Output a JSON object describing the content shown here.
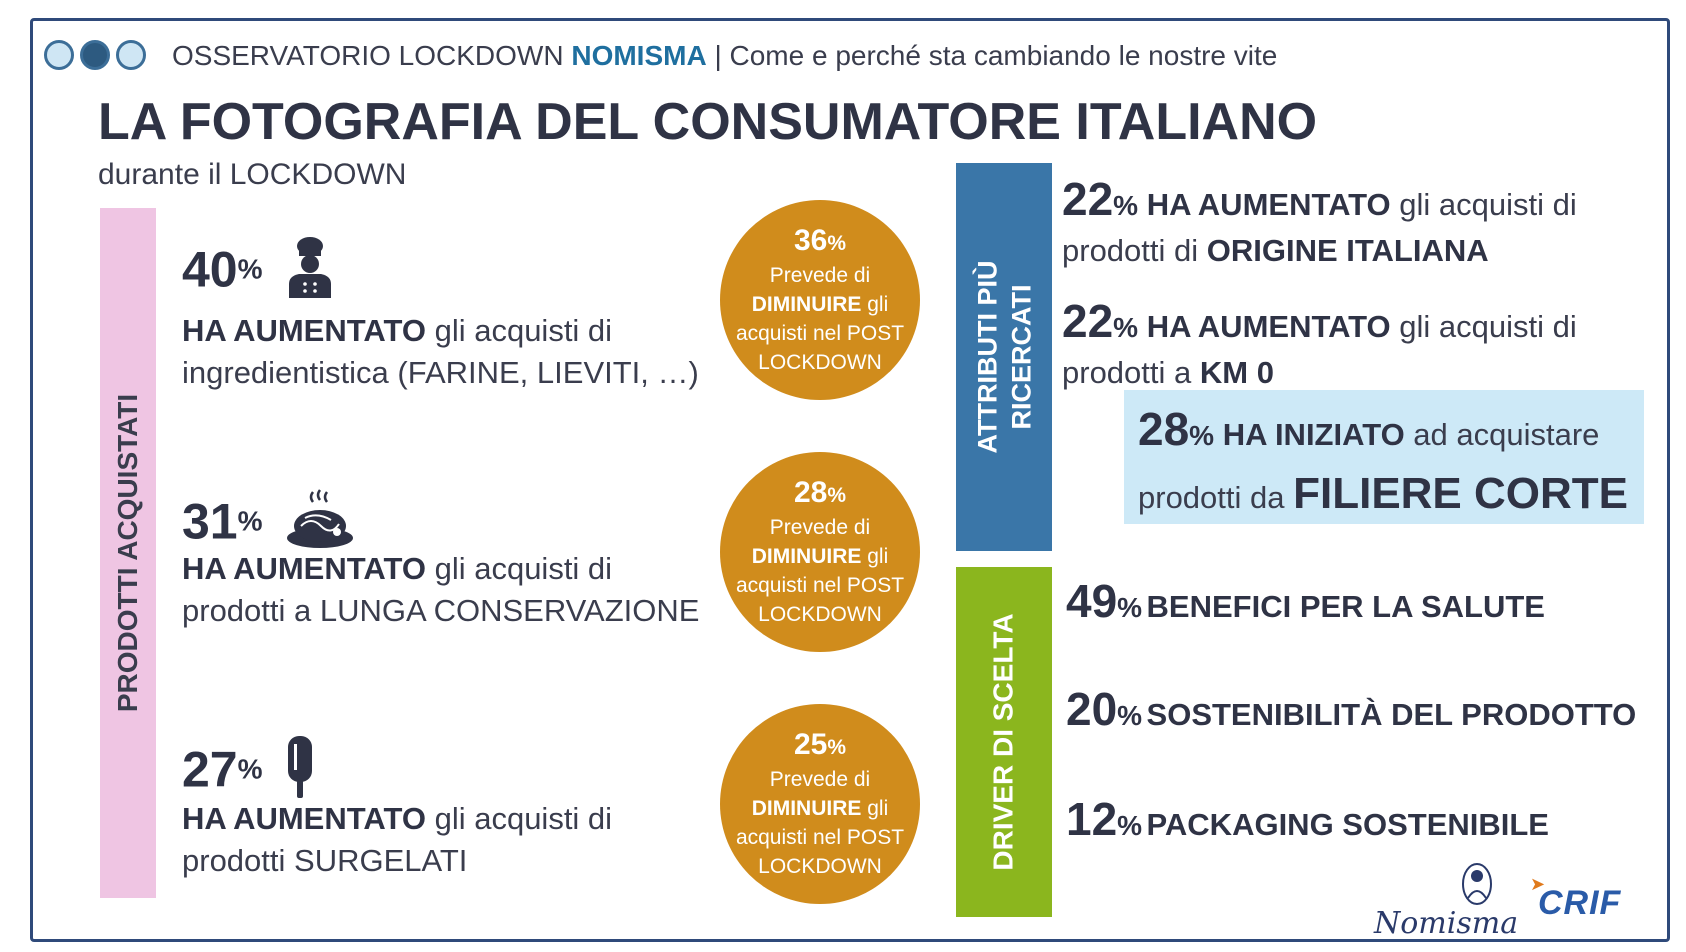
{
  "header": {
    "org_prefix": "OSSERVATORIO LOCKDOWN",
    "org_brand": "NOMISMA",
    "tagline": "| Come e perché sta cambiando le nostre vite",
    "title": "LA FOTOGRAFIA DEL CONSUMATORE ITALIANO",
    "subtitle": "durante il LOCKDOWN"
  },
  "left_panel": {
    "label": "PRODOTTI ACQUISTATI",
    "items": [
      {
        "value": "40",
        "unit": "%",
        "icon": "chef-icon",
        "bold": "HA AUMENTATO",
        "line1_rest": " gli acquisti di",
        "line2": "ingredientistica (FARINE, LIEVITI, …)",
        "circle": {
          "value": "36",
          "unit": "%",
          "line1": "Prevede di",
          "bold": "DIMINUIRE",
          "line2_rest": " gli",
          "line3": "acquisti nel POST",
          "line4": "LOCKDOWN"
        }
      },
      {
        "value": "31",
        "unit": "%",
        "icon": "spaghetti-plate-icon",
        "bold": "HA AUMENTATO",
        "line1_rest": " gli acquisti di",
        "line2": "prodotti a LUNGA CONSERVAZIONE",
        "circle": {
          "value": "28",
          "unit": "%",
          "line1": "Prevede di",
          "bold": "DIMINUIRE",
          "line2_rest": " gli",
          "line3": "acquisti nel POST",
          "line4": "LOCKDOWN"
        }
      },
      {
        "value": "27",
        "unit": "%",
        "icon": "popsicle-icon",
        "bold": "HA AUMENTATO",
        "line1_rest": " gli acquisti di",
        "line2": "prodotti SURGELATI",
        "circle": {
          "value": "25",
          "unit": "%",
          "line1": "Prevede di",
          "bold": "DIMINUIRE",
          "line2_rest": " gli",
          "line3": "acquisti nel POST",
          "line4": "LOCKDOWN"
        }
      }
    ]
  },
  "attributes": {
    "label_line1": "ATTRIBUTI PIÙ",
    "label_line2": "RICERCATI",
    "items": [
      {
        "value": "22",
        "unit": "%",
        "bold": "HA AUMENTATO",
        "rest": " gli acquisti di",
        "line2_pre": "prodotti di ",
        "line2_bold": "ORIGINE ITALIANA"
      },
      {
        "value": "22",
        "unit": "%",
        "bold": "HA AUMENTATO",
        "rest": " gli acquisti di",
        "line2_pre": "prodotti a ",
        "line2_bold": "KM 0"
      }
    ],
    "highlight": {
      "value": "28",
      "unit": "%",
      "bold": "HA INIZIATO",
      "rest": " ad acquistare",
      "line2_pre": "prodotti da ",
      "line2_bold": "FILIERE CORTE"
    }
  },
  "drivers": {
    "label": "DRIVER DI SCELTA",
    "items": [
      {
        "value": "49",
        "unit": "%",
        "label": "BENEFICI PER LA SALUTE"
      },
      {
        "value": "20",
        "unit": "%",
        "label": "SOSTENIBILITÀ DEL PRODOTTO"
      },
      {
        "value": "12",
        "unit": "%",
        "label": "PACKAGING SOSTENIBILE"
      }
    ]
  },
  "logos": {
    "nomisma": "Nomisma",
    "crif": "CRIF"
  },
  "colors": {
    "frame": "#2f4a7a",
    "circle": "#d08c1c",
    "attributes_bar": "#3a76a8",
    "drivers_bar": "#8bb61e",
    "products_bar": "#efc5e3",
    "highlight": "#cde9f7"
  }
}
